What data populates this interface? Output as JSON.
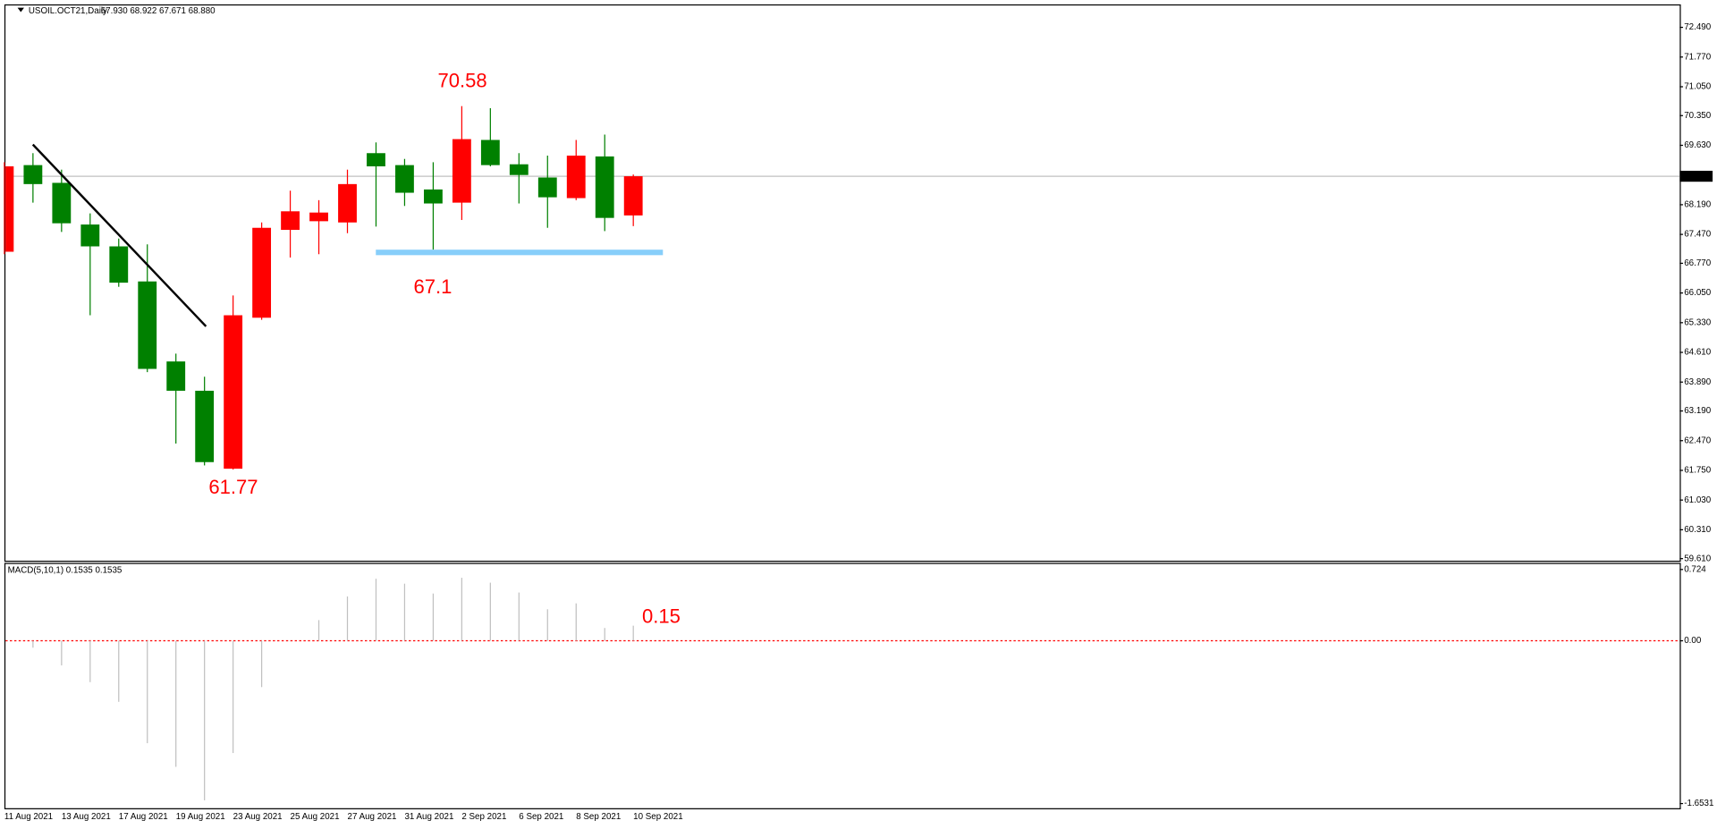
{
  "chart_data": [
    {
      "type": "candlestick",
      "title": "USOIL.OCT21,Daily",
      "ohlc_text": "67.930 68.922 67.671 68.880",
      "categories": [
        "11 Aug 2021",
        null,
        "13 Aug 2021",
        null,
        "17 Aug 2021",
        null,
        "19 Aug 2021",
        null,
        "23 Aug 2021",
        null,
        "25 Aug 2021",
        null,
        "27 Aug 2021",
        null,
        "31 Aug 2021",
        null,
        "2 Sep 2021",
        null,
        "6 Sep 2021",
        null,
        "8 Sep 2021",
        null,
        "10 Sep 2021"
      ],
      "open": [
        67.05,
        69.15,
        68.72,
        67.71,
        67.18,
        66.33,
        64.39,
        63.68,
        61.79,
        65.45,
        67.58,
        67.79,
        67.76,
        69.44,
        69.15,
        68.56,
        68.24,
        69.76,
        69.17,
        68.85,
        68.35,
        69.36,
        67.93
      ],
      "high": [
        69.22,
        69.44,
        69.04,
        67.98,
        67.37,
        67.23,
        64.58,
        64.02,
        65.99,
        67.76,
        68.53,
        68.3,
        69.04,
        69.7,
        69.3,
        69.22,
        70.58,
        70.53,
        69.44,
        69.38,
        69.76,
        69.89,
        68.922
      ],
      "low": [
        66.99,
        68.24,
        67.53,
        65.51,
        66.2,
        64.13,
        62.4,
        61.87,
        61.77,
        65.4,
        66.91,
        66.99,
        67.5,
        67.66,
        68.16,
        67.1,
        67.82,
        69.12,
        68.22,
        67.63,
        68.3,
        67.55,
        67.671
      ],
      "close": [
        69.12,
        68.69,
        67.74,
        67.18,
        66.3,
        64.21,
        63.68,
        61.95,
        65.51,
        67.63,
        68.03,
        68.0,
        68.69,
        69.12,
        68.48,
        68.22,
        69.78,
        69.15,
        68.91,
        68.37,
        69.38,
        67.87,
        68.88
      ],
      "up_color": "#ff0000",
      "down_color": "#008000",
      "ylim": [
        59.56,
        73.02
      ],
      "yticks": [
        {
          "value": 72.49,
          "label": "72.490"
        },
        {
          "value": 71.77,
          "label": "71.770"
        },
        {
          "value": 71.05,
          "label": "71.050"
        },
        {
          "value": 70.35,
          "label": "70.350"
        },
        {
          "value": 69.63,
          "label": "69.630"
        },
        {
          "value": 68.19,
          "label": "68.190"
        },
        {
          "value": 67.47,
          "label": "67.470"
        },
        {
          "value": 66.77,
          "label": "66.770"
        },
        {
          "value": 66.05,
          "label": "66.050"
        },
        {
          "value": 65.33,
          "label": "65.330"
        },
        {
          "value": 64.61,
          "label": "64.610"
        },
        {
          "value": 63.89,
          "label": "63.890"
        },
        {
          "value": 63.19,
          "label": "63.190"
        },
        {
          "value": 62.47,
          "label": "62.470"
        },
        {
          "value": 61.75,
          "label": "61.750"
        },
        {
          "value": 61.03,
          "label": "61.030"
        },
        {
          "value": 60.31,
          "label": "60.310"
        },
        {
          "value": 59.61,
          "label": "59.610"
        }
      ],
      "current_price": {
        "value": 68.88,
        "label": "68.880"
      },
      "annotations": [
        "70.58",
        "67.1",
        "61.77"
      ]
    },
    {
      "type": "bar",
      "title": "MACD(5,10,1) 0.1535 0.1535",
      "color": "#c0c0c0",
      "values": [
        null,
        -0.07,
        -0.25,
        -0.42,
        -0.62,
        -1.04,
        -1.28,
        -1.62,
        -1.14,
        -0.47,
        0,
        0.21,
        0.45,
        0.63,
        0.58,
        0.48,
        0.64,
        0.59,
        0.49,
        0.32,
        0.38,
        0.13,
        0.1535
      ],
      "ylim": [
        -1.7,
        0.78
      ],
      "yticks": [
        {
          "value": 0.724,
          "label": "0.724"
        },
        {
          "value": 0,
          "label": "0.00"
        },
        {
          "value": -1.6531,
          "label": "-1.6531"
        }
      ],
      "annotations": [
        "0.15"
      ]
    }
  ]
}
